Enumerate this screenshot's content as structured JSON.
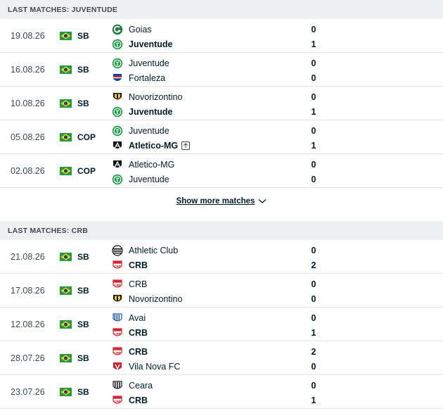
{
  "sections": [
    {
      "title": "LAST MATCHES: JUVENTUDE",
      "matches": [
        {
          "date": "19.08.26",
          "comp": "SB",
          "home": {
            "name": "Goias",
            "logo": "goias-logo",
            "winner": false
          },
          "away": {
            "name": "Juventude",
            "logo": "juventude-logo",
            "winner": true
          },
          "home_score": "0",
          "away_score": "1"
        },
        {
          "date": "16.08.26",
          "comp": "SB",
          "home": {
            "name": "Juventude",
            "logo": "juventude-logo",
            "winner": false
          },
          "away": {
            "name": "Fortaleza",
            "logo": "fortaleza-logo",
            "winner": false
          },
          "home_score": "0",
          "away_score": "0"
        },
        {
          "date": "10.08.26",
          "comp": "SB",
          "home": {
            "name": "Novorizontino",
            "logo": "novorizontino-logo",
            "winner": false
          },
          "away": {
            "name": "Juventude",
            "logo": "juventude-logo",
            "winner": true
          },
          "home_score": "0",
          "away_score": "1"
        },
        {
          "date": "05.08.26",
          "comp": "COP",
          "home": {
            "name": "Juventude",
            "logo": "juventude-logo",
            "winner": false
          },
          "away": {
            "name": "Atletico-MG",
            "logo": "atletico-mg-logo",
            "winner": true,
            "advance_icon": true
          },
          "home_score": "0",
          "away_score": "1"
        },
        {
          "date": "02.08.26",
          "comp": "COP",
          "home": {
            "name": "Atletico-MG",
            "logo": "atletico-mg-logo",
            "winner": false
          },
          "away": {
            "name": "Juventude",
            "logo": "juventude-logo",
            "winner": false
          },
          "home_score": "0",
          "away_score": "0"
        }
      ]
    },
    {
      "title": "LAST MATCHES: CRB",
      "matches": [
        {
          "date": "21.08.26",
          "comp": "SB",
          "home": {
            "name": "Athletic Club",
            "logo": "athletic-club-logo",
            "winner": false
          },
          "away": {
            "name": "CRB",
            "logo": "crb-logo",
            "winner": true
          },
          "home_score": "0",
          "away_score": "2"
        },
        {
          "date": "17.08.26",
          "comp": "SB",
          "home": {
            "name": "CRB",
            "logo": "crb-logo",
            "winner": false
          },
          "away": {
            "name": "Novorizontino",
            "logo": "novorizontino-logo",
            "winner": false
          },
          "home_score": "0",
          "away_score": "0"
        },
        {
          "date": "12.08.26",
          "comp": "SB",
          "home": {
            "name": "Avai",
            "logo": "avai-logo",
            "winner": false
          },
          "away": {
            "name": "CRB",
            "logo": "crb-logo",
            "winner": true
          },
          "home_score": "0",
          "away_score": "1"
        },
        {
          "date": "28.07.26",
          "comp": "SB",
          "home": {
            "name": "CRB",
            "logo": "crb-logo",
            "winner": true
          },
          "away": {
            "name": "Vila Nova FC",
            "logo": "vila-nova-logo",
            "winner": false
          },
          "home_score": "2",
          "away_score": "0"
        },
        {
          "date": "23.07.26",
          "comp": "SB",
          "home": {
            "name": "Ceara",
            "logo": "ceara-logo",
            "winner": false
          },
          "away": {
            "name": "CRB",
            "logo": "crb-logo",
            "winner": true
          },
          "home_score": "0",
          "away_score": "1"
        }
      ]
    }
  ],
  "show_more_label": "Show more matches",
  "flag_icon": "brazil-flag-icon",
  "colors": {
    "header_bg": "#eef0f1",
    "divider": "#e2e6e8",
    "juventude": "#1fa24a",
    "crb": "#d6202a"
  }
}
